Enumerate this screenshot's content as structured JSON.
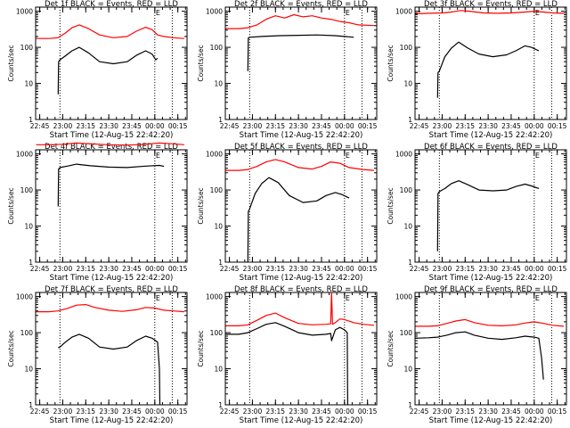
{
  "figure": {
    "background": "#ffffff",
    "axis_color": "#000000",
    "events_color": "#000000",
    "lld_color": "#ff0000",
    "xlabel": "Start Time (12-Aug-15 22:42:20)",
    "ylabel": "Counts/sec",
    "x_ticks": [
      {
        "t": 22.75,
        "label": "22:45"
      },
      {
        "t": 23.0,
        "label": "23:00"
      },
      {
        "t": 23.25,
        "label": "23:15"
      },
      {
        "t": 23.5,
        "label": "23:30"
      },
      {
        "t": 23.75,
        "label": "23:45"
      },
      {
        "t": 24.0,
        "label": "00:00"
      },
      {
        "t": 24.25,
        "label": "00:15"
      }
    ],
    "x_range": [
      22.7056,
      24.35
    ],
    "y_ticks": [
      {
        "v": 1,
        "label": "1"
      },
      {
        "v": 10,
        "label": "10"
      },
      {
        "v": 100,
        "label": "100"
      },
      {
        "v": 1000,
        "label": "1000"
      }
    ],
    "y_range": [
      1,
      1300
    ],
    "event_marker_label": "E",
    "dotted_lines": [
      22.97,
      24.0,
      24.19
    ]
  },
  "chart_data": [
    {
      "type": "line",
      "title": "Det 1f BLACK = Events, RED = LLD",
      "xlabel": "Start Time (12-Aug-15 22:42:20)",
      "ylabel": "Counts/sec",
      "yscale": "log",
      "ylim": [
        1,
        1300
      ],
      "series": [
        {
          "name": "LLD",
          "color": "#ff0000",
          "x": [
            22.71,
            22.85,
            22.95,
            23.03,
            23.1,
            23.18,
            23.28,
            23.4,
            23.55,
            23.7,
            23.8,
            23.9,
            23.97,
            24.03,
            24.1,
            24.2,
            24.32
          ],
          "y": [
            175,
            175,
            185,
            250,
            350,
            420,
            330,
            220,
            185,
            200,
            280,
            360,
            310,
            220,
            200,
            185,
            175
          ]
        },
        {
          "name": "Events",
          "color": "#000000",
          "x": [
            22.95,
            22.955,
            22.97,
            23.03,
            23.1,
            23.18,
            23.28,
            23.4,
            23.55,
            23.7,
            23.8,
            23.9,
            23.97,
            24.01,
            24.03
          ],
          "y": [
            5,
            40,
            45,
            58,
            80,
            100,
            70,
            40,
            35,
            40,
            60,
            80,
            65,
            45,
            50
          ]
        }
      ]
    },
    {
      "type": "line",
      "title": "Det 2f BLACK = Events, RED = LLD",
      "xlabel": "Start Time (12-Aug-15 22:42:20)",
      "ylabel": "Counts/sec",
      "yscale": "log",
      "ylim": [
        1,
        1300
      ],
      "series": [
        {
          "name": "LLD",
          "color": "#ff0000",
          "x": [
            22.71,
            22.85,
            22.95,
            23.05,
            23.15,
            23.25,
            23.35,
            23.45,
            23.55,
            23.65,
            23.75,
            23.85,
            23.95,
            24.05,
            24.15,
            24.32
          ],
          "y": [
            330,
            330,
            350,
            420,
            600,
            750,
            650,
            800,
            700,
            750,
            650,
            600,
            520,
            480,
            420,
            400
          ]
        },
        {
          "name": "Events",
          "color": "#000000",
          "x": [
            22.95,
            22.955,
            22.97,
            23.1,
            23.3,
            23.5,
            23.7,
            23.9,
            24.0,
            24.05,
            24.1
          ],
          "y": [
            22,
            180,
            190,
            200,
            210,
            215,
            220,
            210,
            200,
            195,
            190
          ]
        }
      ]
    },
    {
      "type": "line",
      "title": "Det 3f BLACK = Events, RED = LLD",
      "xlabel": "Start Time (12-Aug-15 22:42:20)",
      "ylabel": "Counts/sec",
      "yscale": "log",
      "ylim": [
        1,
        1300
      ],
      "series": [
        {
          "name": "LLD",
          "color": "#ff0000",
          "x": [
            22.71,
            22.85,
            23.0,
            23.1,
            23.2,
            23.3,
            23.45,
            23.6,
            23.75,
            23.9,
            24.0,
            24.1,
            24.2,
            24.32
          ],
          "y": [
            850,
            880,
            900,
            950,
            1050,
            1000,
            900,
            880,
            900,
            950,
            1000,
            950,
            900,
            880
          ]
        },
        {
          "name": "Events",
          "color": "#000000",
          "x": [
            22.95,
            22.955,
            22.97,
            23.03,
            23.1,
            23.18,
            23.28,
            23.4,
            23.55,
            23.7,
            23.8,
            23.9,
            23.97,
            24.05
          ],
          "y": [
            4,
            20,
            22,
            55,
            95,
            140,
            95,
            65,
            55,
            62,
            80,
            110,
            100,
            80
          ]
        }
      ]
    },
    {
      "type": "line",
      "title": "Det 4f BLACK = Events, RED = LLD",
      "xlabel": "Start Time (12-Aug-15 22:42:20)",
      "ylabel": "Counts/sec",
      "yscale": "log",
      "ylim": [
        1,
        1300
      ],
      "series": [
        {
          "name": "LLD",
          "color": "#ff0000",
          "x": [
            22.71,
            22.85,
            23.0,
            23.15,
            23.3,
            23.5,
            23.7,
            23.9,
            24.05,
            24.2,
            24.32
          ],
          "y": [
            1800,
            1800,
            1850,
            2000,
            1900,
            1800,
            1750,
            1850,
            2000,
            1900,
            1800
          ]
        },
        {
          "name": "Events",
          "color": "#000000",
          "x": [
            22.95,
            22.955,
            22.97,
            23.05,
            23.15,
            23.3,
            23.5,
            23.7,
            23.9,
            24.05,
            24.1
          ],
          "y": [
            35,
            380,
            420,
            460,
            520,
            470,
            430,
            420,
            460,
            480,
            450
          ]
        }
      ]
    },
    {
      "type": "line",
      "title": "Det 5f BLACK = Events, RED = LLD",
      "xlabel": "Start Time (12-Aug-15 22:42:20)",
      "ylabel": "Counts/sec",
      "yscale": "log",
      "ylim": [
        1,
        1300
      ],
      "series": [
        {
          "name": "LLD",
          "color": "#ff0000",
          "x": [
            22.71,
            22.85,
            22.95,
            23.05,
            23.15,
            23.25,
            23.35,
            23.5,
            23.65,
            23.75,
            23.85,
            23.95,
            24.05,
            24.2,
            24.32
          ],
          "y": [
            350,
            350,
            370,
            450,
            600,
            700,
            600,
            420,
            380,
            450,
            600,
            550,
            420,
            370,
            350
          ]
        },
        {
          "name": "Events",
          "color": "#000000",
          "x": [
            22.95,
            22.955,
            22.97,
            23.03,
            23.1,
            23.18,
            23.28,
            23.4,
            23.55,
            23.7,
            23.8,
            23.9,
            23.97,
            24.05
          ],
          "y": [
            1,
            25,
            30,
            80,
            150,
            220,
            160,
            70,
            45,
            50,
            70,
            85,
            75,
            60
          ]
        }
      ]
    },
    {
      "type": "line",
      "title": "Det 6f BLACK = Events, RED = LLD",
      "xlabel": "Start Time (12-Aug-15 22:42:20)",
      "ylabel": "Counts/sec",
      "yscale": "log",
      "ylim": [
        1,
        1300
      ],
      "series": [
        {
          "name": "Events",
          "color": "#000000",
          "x": [
            22.95,
            22.955,
            22.97,
            23.03,
            23.1,
            23.18,
            23.28,
            23.4,
            23.55,
            23.7,
            23.8,
            23.9,
            23.97,
            24.05
          ],
          "y": [
            2,
            80,
            90,
            110,
            150,
            180,
            140,
            100,
            95,
            100,
            125,
            145,
            130,
            110
          ]
        }
      ]
    },
    {
      "type": "line",
      "title": "Det 7f BLACK = Events, RED = LLD",
      "xlabel": "Start Time (12-Aug-15 22:42:20)",
      "ylabel": "Counts/sec",
      "yscale": "log",
      "ylim": [
        1,
        1300
      ],
      "series": [
        {
          "name": "LLD",
          "color": "#ff0000",
          "x": [
            22.71,
            22.85,
            22.95,
            23.05,
            23.15,
            23.25,
            23.35,
            23.5,
            23.65,
            23.8,
            23.9,
            24.0,
            24.1,
            24.2,
            24.32
          ],
          "y": [
            380,
            380,
            400,
            470,
            580,
            600,
            500,
            420,
            390,
            430,
            500,
            480,
            420,
            400,
            380
          ]
        },
        {
          "name": "Events",
          "color": "#000000",
          "x": [
            22.95,
            22.97,
            23.03,
            23.1,
            23.18,
            23.28,
            23.4,
            23.55,
            23.7,
            23.8,
            23.9,
            23.97,
            24.03,
            24.05,
            24.055
          ],
          "y": [
            38,
            40,
            55,
            75,
            90,
            70,
            40,
            35,
            40,
            60,
            80,
            70,
            55,
            10,
            1
          ]
        }
      ]
    },
    {
      "type": "line",
      "title": "Det 8f BLACK = Events, RED = LLD",
      "xlabel": "Start Time (12-Aug-15 22:42:20)",
      "ylabel": "Counts/sec",
      "yscale": "log",
      "ylim": [
        1,
        1300
      ],
      "series": [
        {
          "name": "LLD",
          "color": "#ff0000",
          "x": [
            22.71,
            22.85,
            22.95,
            23.05,
            23.15,
            23.25,
            23.35,
            23.5,
            23.65,
            23.8,
            23.85,
            23.86,
            23.87,
            23.9,
            23.95,
            24.0,
            24.1,
            24.2,
            24.32
          ],
          "y": [
            155,
            155,
            165,
            220,
            300,
            350,
            260,
            180,
            165,
            170,
            175,
            1300,
            170,
            190,
            240,
            230,
            190,
            170,
            160
          ]
        },
        {
          "name": "Events",
          "color": "#000000",
          "x": [
            22.71,
            22.85,
            22.95,
            23.05,
            23.15,
            23.25,
            23.35,
            23.5,
            23.65,
            23.8,
            23.85,
            23.86,
            23.9,
            23.95,
            24.0,
            24.03,
            24.035
          ],
          "y": [
            90,
            90,
            100,
            130,
            170,
            190,
            150,
            100,
            85,
            90,
            95,
            60,
            120,
            140,
            120,
            100,
            1
          ]
        }
      ]
    },
    {
      "type": "line",
      "title": "Det 9f BLACK = Events, RED = LLD",
      "xlabel": "Start Time (12-Aug-15 22:42:20)",
      "ylabel": "Counts/sec",
      "yscale": "log",
      "ylim": [
        1,
        1300
      ],
      "series": [
        {
          "name": "LLD",
          "color": "#ff0000",
          "x": [
            22.71,
            22.85,
            22.95,
            23.05,
            23.15,
            23.25,
            23.35,
            23.5,
            23.65,
            23.8,
            23.9,
            24.0,
            24.1,
            24.2,
            24.32
          ],
          "y": [
            150,
            150,
            155,
            180,
            210,
            230,
            190,
            160,
            155,
            165,
            185,
            200,
            180,
            160,
            150
          ]
        },
        {
          "name": "Events",
          "color": "#000000",
          "x": [
            22.71,
            22.85,
            22.95,
            23.05,
            23.15,
            23.25,
            23.35,
            23.5,
            23.65,
            23.8,
            23.9,
            24.0,
            24.05,
            24.08,
            24.1
          ],
          "y": [
            70,
            72,
            75,
            85,
            100,
            105,
            85,
            70,
            65,
            72,
            80,
            75,
            70,
            20,
            5
          ]
        }
      ]
    }
  ]
}
